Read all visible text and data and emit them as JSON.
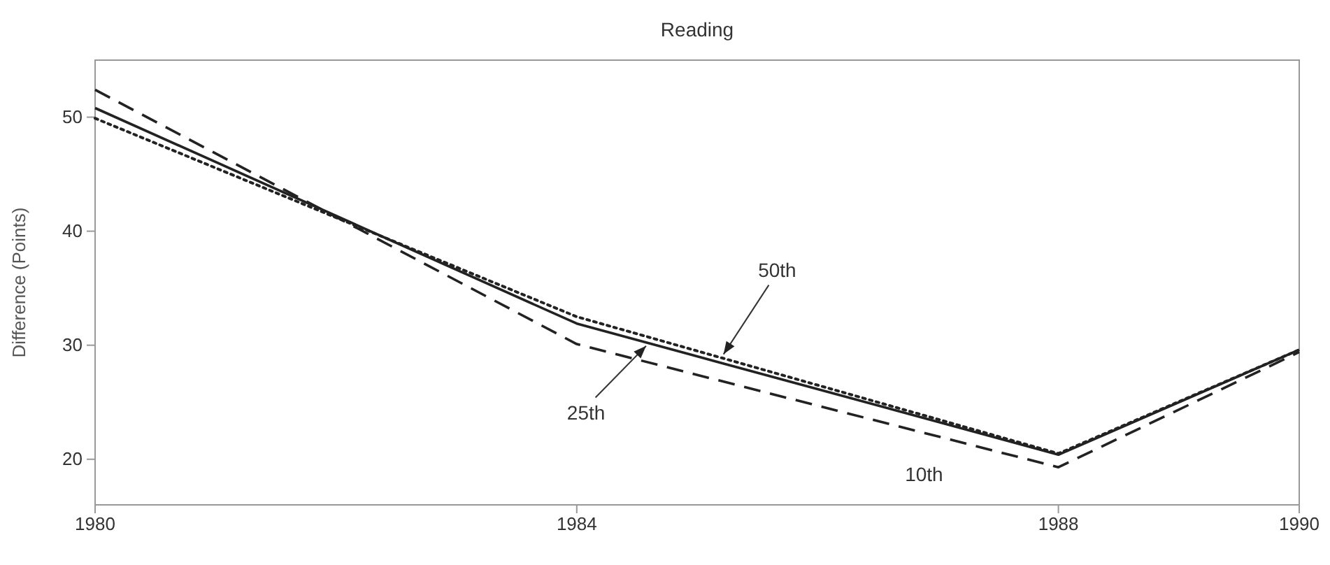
{
  "chart_data": {
    "type": "line",
    "title": "Reading",
    "ylabel": "Difference (Points)",
    "x": [
      1980,
      1984,
      1988,
      1990
    ],
    "xlim": [
      1980,
      1990
    ],
    "xticks": [
      1980,
      1984,
      1988,
      1990
    ],
    "ylim": [
      16,
      55
    ],
    "yticks": [
      20,
      30,
      40,
      50
    ],
    "grid": false,
    "marker": "none",
    "annotations": [
      {
        "text": "10th",
        "x": 1987,
        "y": 22.0
      },
      {
        "text": "25th",
        "x": 1984.6,
        "y": 30.2
      },
      {
        "text": "50th",
        "x": 1985.2,
        "y": 28.9
      }
    ],
    "series": [
      {
        "color": "#222222",
        "line_style": "dashed",
        "values": [
          52.4,
          30.1,
          19.3,
          29.4
        ]
      },
      {
        "color": "#222222",
        "line_style": "solid",
        "values": [
          50.8,
          31.9,
          20.4,
          29.6
        ]
      },
      {
        "color": "#222222",
        "line_style": "dotted",
        "values": [
          49.9,
          32.5,
          20.5,
          29.6
        ]
      }
    ]
  }
}
